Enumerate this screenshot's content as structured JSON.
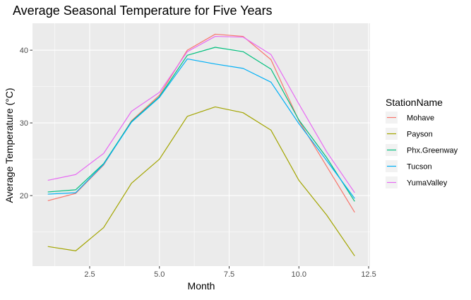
{
  "chart_data": {
    "type": "line",
    "title": "Average Seasonal Temperature for Five Years",
    "xlabel": "Month",
    "ylabel": "Average Temperature (°C)",
    "xlim": [
      0.45,
      12.55
    ],
    "ylim": [
      10.3,
      43.7
    ],
    "xticks": [
      2.5,
      5.0,
      7.5,
      10.0,
      12.5
    ],
    "xtick_labels": [
      "2.5",
      "5.0",
      "7.5",
      "10.0",
      "12.5"
    ],
    "yticks": [
      20,
      30,
      40
    ],
    "ytick_labels": [
      "20",
      "30",
      "40"
    ],
    "grid": true,
    "legend": {
      "title": "StationName",
      "position": "right"
    },
    "x": [
      1,
      2,
      3,
      4,
      5,
      6,
      7,
      8,
      9,
      10,
      11,
      12
    ],
    "series": [
      {
        "name": "Mohave",
        "color": "#F8766D",
        "values": [
          19.3,
          20.3,
          24.2,
          30.3,
          33.8,
          40.0,
          42.2,
          41.9,
          38.7,
          30.3,
          24.0,
          17.7
        ]
      },
      {
        "name": "Payson",
        "color": "#A3A500",
        "values": [
          13.0,
          12.4,
          15.6,
          21.7,
          25.0,
          30.9,
          32.2,
          31.4,
          29.0,
          22.1,
          17.3,
          11.7
        ]
      },
      {
        "name": "Phx.Greenway",
        "color": "#00BF7D",
        "values": [
          20.5,
          20.8,
          24.4,
          30.2,
          33.6,
          39.3,
          40.4,
          39.8,
          37.4,
          30.4,
          25.2,
          19.2
        ]
      },
      {
        "name": "Tucson",
        "color": "#00B0F6",
        "values": [
          20.2,
          20.4,
          24.3,
          30.1,
          33.5,
          38.8,
          38.1,
          37.5,
          35.6,
          29.9,
          24.8,
          19.6
        ]
      },
      {
        "name": "YumaValley",
        "color": "#E76BF3",
        "values": [
          22.1,
          22.9,
          25.8,
          31.6,
          34.2,
          39.8,
          41.9,
          41.8,
          39.4,
          32.6,
          26.0,
          20.4
        ]
      }
    ]
  }
}
